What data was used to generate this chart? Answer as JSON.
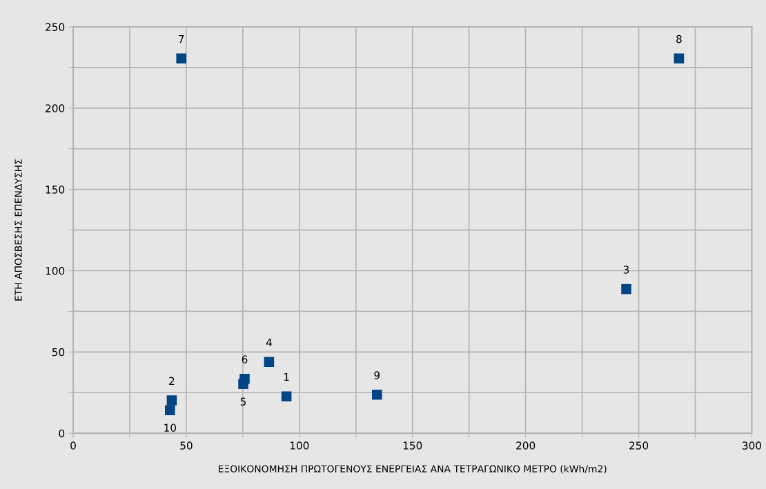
{
  "chart_data": {
    "type": "scatter",
    "xlabel": "ΕΞΟΙΚΟΝΟΜΗΣΗ ΠΡΩΤΟΓΕΝΟΥΣ ΕΝΕΡΓΕΙΑΣ ΑΝΑ ΤΕΤΡΑΓΩΝΙΚΟ ΜΕΤΡΟ (kWh/m2)",
    "ylabel": "ΕΤΗ ΑΠΟΣΒΕΣΗΣ ΕΠΕΝΔΥΣΗΣ",
    "x": [
      94.3,
      43.6,
      244.5,
      86.6,
      75.2,
      75.8,
      47.8,
      267.8,
      134.3,
      42.8
    ],
    "values": [
      22.7,
      20.2,
      88.7,
      43.9,
      30.3,
      33.5,
      230.6,
      230.6,
      23.7,
      14.2
    ],
    "color": "#004586",
    "marker": "square",
    "annotations": [
      {
        "text": "1",
        "x": 94.3,
        "y": 22.7
      },
      {
        "text": "2",
        "x": 43.6,
        "y": 20.2
      },
      {
        "text": "3",
        "x": 244.5,
        "y": 88.7
      },
      {
        "text": "4",
        "x": 86.6,
        "y": 43.9
      },
      {
        "text": "5",
        "x": 75.2,
        "y": 30.3
      },
      {
        "text": "6",
        "x": 75.8,
        "y": 33.5
      },
      {
        "text": "7",
        "x": 47.8,
        "y": 230.6
      },
      {
        "text": "8",
        "x": 267.8,
        "y": 230.6
      },
      {
        "text": "9",
        "x": 134.3,
        "y": 23.7
      },
      {
        "text": "10",
        "x": 42.8,
        "y": 14.2
      }
    ],
    "xlim": [
      0,
      300
    ],
    "ylim": [
      0,
      250
    ],
    "xticks": [
      0,
      {
        "value": 25,
        "label": null
      },
      50,
      {
        "value": 75,
        "label": null
      },
      100,
      {
        "value": 125,
        "label": null
      },
      150,
      {
        "value": 175,
        "label": null
      },
      200,
      {
        "value": 225,
        "label": null
      },
      250,
      {
        "value": 275,
        "label": null
      },
      300
    ],
    "yticks": [
      0,
      {
        "value": 25,
        "label": null
      },
      50,
      {
        "value": 75,
        "label": null
      },
      100,
      {
        "value": 125,
        "label": null
      },
      150,
      {
        "value": 175,
        "label": null
      },
      200,
      {
        "value": 225,
        "label": null
      },
      250
    ],
    "grid": true
  }
}
